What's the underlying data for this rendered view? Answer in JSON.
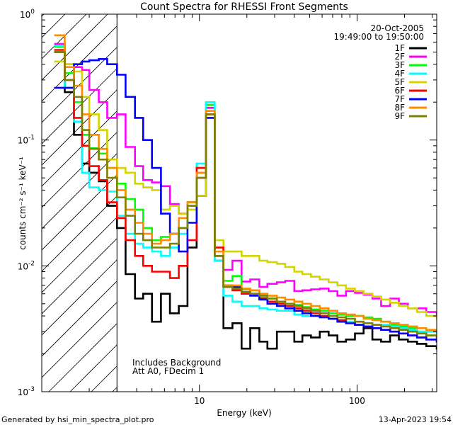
{
  "chart_data": {
    "type": "line",
    "title": "Count Spectra for RHESSI Front Segments",
    "xlabel": "Energy (keV)",
    "ylabel": "counts cm⁻² s⁻¹ keV⁻¹",
    "xscale": "log",
    "yscale": "log",
    "xlim": [
      1.0,
      320
    ],
    "ylim": [
      0.001,
      1.0
    ],
    "x_ticks": [
      {
        "value": 10,
        "label": "10"
      },
      {
        "value": 100,
        "label": "100"
      }
    ],
    "y_ticks": [
      {
        "value": 1.0,
        "base": "10",
        "exp": "0"
      },
      {
        "value": 0.1,
        "base": "10",
        "exp": "-1"
      },
      {
        "value": 0.01,
        "base": "10",
        "exp": "-2"
      },
      {
        "value": 0.001,
        "base": "10",
        "exp": "-3"
      }
    ],
    "excluded_region": {
      "from": 1.0,
      "to": 3.0,
      "style": "hatched"
    },
    "annotation_date": "20-Oct-2005",
    "annotation_time": "19:49:00 to 19:50:00",
    "annotation_notes": [
      "Includes Background",
      "Att A0, FDecim 1"
    ],
    "footer_left": "Generated by hsi_min_spectra_plot.pro",
    "footer_right": "13-Apr-2023 19:54",
    "energy_bins_keV": [
      1.2,
      1.4,
      1.6,
      1.8,
      2.0,
      2.3,
      2.6,
      3.0,
      3.4,
      3.9,
      4.4,
      5.0,
      5.7,
      6.5,
      7.4,
      8.4,
      9.6,
      11.0,
      12.5,
      14.2,
      16.2,
      18.5,
      21.0,
      24.0,
      27.0,
      31.0,
      35.0,
      40.0,
      45.0,
      51.0,
      58.0,
      66.0,
      75.0,
      85.0,
      97.0,
      110.0,
      125.0,
      142.0,
      162.0,
      184.0,
      210.0,
      240.0,
      275.0,
      320.0
    ],
    "series": [
      {
        "name": "1F",
        "color": "#000000",
        "values": [
          0.5,
          0.24,
          0.11,
          0.065,
          0.055,
          0.047,
          0.03,
          0.02,
          0.0086,
          0.0055,
          0.006,
          0.0036,
          0.006,
          0.0042,
          0.0048,
          0.014,
          0.036,
          0.16,
          0.011,
          0.0032,
          0.0035,
          0.0022,
          0.0032,
          0.0025,
          0.0022,
          0.003,
          0.003,
          0.0025,
          0.0028,
          0.0027,
          0.003,
          0.0028,
          0.0025,
          0.0026,
          0.0029,
          0.0032,
          0.0026,
          0.0025,
          0.0028,
          0.0026,
          0.0025,
          0.0024,
          0.0023,
          0.0022
        ]
      },
      {
        "name": "2F",
        "color": "#ff00ff",
        "values": [
          0.58,
          0.4,
          0.38,
          0.36,
          0.25,
          0.2,
          0.15,
          0.16,
          0.088,
          0.062,
          0.048,
          0.046,
          0.043,
          0.031,
          0.026,
          0.032,
          0.05,
          0.18,
          0.012,
          0.0093,
          0.011,
          0.0075,
          0.0078,
          0.0068,
          0.0072,
          0.0074,
          0.0076,
          0.0063,
          0.0064,
          0.0065,
          0.0066,
          0.0063,
          0.0058,
          0.0063,
          0.0061,
          0.0059,
          0.0055,
          0.0048,
          0.0055,
          0.005,
          0.0046,
          0.0046,
          0.0043,
          0.004
        ]
      },
      {
        "name": "3F",
        "color": "#00ff00",
        "values": [
          0.55,
          0.34,
          0.2,
          0.11,
          0.086,
          0.078,
          0.06,
          0.045,
          0.034,
          0.028,
          0.02,
          0.016,
          0.017,
          0.018,
          0.02,
          0.032,
          0.06,
          0.19,
          0.014,
          0.0076,
          0.0083,
          0.0065,
          0.0064,
          0.0056,
          0.0055,
          0.0052,
          0.005,
          0.0049,
          0.0047,
          0.0045,
          0.0044,
          0.0042,
          0.0041,
          0.004,
          0.004,
          0.0039,
          0.0038,
          0.0036,
          0.0034,
          0.0033,
          0.0032,
          0.003,
          0.0028,
          0.0027
        ]
      },
      {
        "name": "4F",
        "color": "#00ffff",
        "values": [
          0.56,
          0.26,
          0.14,
          0.055,
          0.042,
          0.04,
          0.039,
          0.025,
          0.018,
          0.015,
          0.014,
          0.013,
          0.012,
          0.014,
          0.018,
          0.03,
          0.065,
          0.2,
          0.011,
          0.0058,
          0.0052,
          0.0048,
          0.0048,
          0.0046,
          0.0045,
          0.0044,
          0.0044,
          0.0041,
          0.004,
          0.004,
          0.0039,
          0.0038,
          0.0037,
          0.0036,
          0.0036,
          0.0035,
          0.0034,
          0.0034,
          0.0033,
          0.0032,
          0.0031,
          0.003,
          0.003,
          0.0029
        ]
      },
      {
        "name": "5F",
        "color": "#d4d400",
        "values": [
          0.42,
          0.4,
          0.35,
          0.22,
          0.16,
          0.12,
          0.07,
          0.06,
          0.055,
          0.045,
          0.042,
          0.04,
          0.028,
          0.03,
          0.026,
          0.028,
          0.036,
          0.17,
          0.016,
          0.013,
          0.013,
          0.012,
          0.012,
          0.011,
          0.0107,
          0.0104,
          0.0098,
          0.009,
          0.0086,
          0.0082,
          0.0078,
          0.0074,
          0.007,
          0.0066,
          0.0063,
          0.006,
          0.0057,
          0.0054,
          0.0051,
          0.0048,
          0.0046,
          0.0043,
          0.004,
          0.0038
        ]
      },
      {
        "name": "6F",
        "color": "#ff0000",
        "values": [
          0.52,
          0.3,
          0.15,
          0.09,
          0.062,
          0.048,
          0.032,
          0.024,
          0.016,
          0.012,
          0.01,
          0.009,
          0.009,
          0.008,
          0.01,
          0.016,
          0.06,
          0.16,
          0.014,
          0.0068,
          0.0064,
          0.006,
          0.006,
          0.0055,
          0.0052,
          0.005,
          0.0048,
          0.0046,
          0.0044,
          0.0042,
          0.004,
          0.0038,
          0.0037,
          0.0035,
          0.0034,
          0.0033,
          0.0032,
          0.0031,
          0.003,
          0.0029,
          0.0028,
          0.0027,
          0.0026,
          0.0025
        ]
      },
      {
        "name": "7F",
        "color": "#0000ff",
        "values": [
          0.26,
          0.26,
          0.4,
          0.42,
          0.43,
          0.44,
          0.4,
          0.33,
          0.22,
          0.15,
          0.1,
          0.06,
          0.026,
          0.018,
          0.013,
          0.022,
          0.055,
          0.15,
          0.012,
          0.007,
          0.0068,
          0.0062,
          0.0058,
          0.0054,
          0.005,
          0.0048,
          0.0046,
          0.0044,
          0.0042,
          0.004,
          0.0039,
          0.0038,
          0.0036,
          0.0035,
          0.0034,
          0.0033,
          0.0032,
          0.0031,
          0.003,
          0.0029,
          0.0028,
          0.0027,
          0.0026,
          0.0025
        ]
      },
      {
        "name": "8F",
        "color": "#ff8c00",
        "values": [
          0.68,
          0.38,
          0.27,
          0.16,
          0.11,
          0.085,
          0.06,
          0.04,
          0.028,
          0.022,
          0.018,
          0.015,
          0.016,
          0.018,
          0.024,
          0.032,
          0.055,
          0.17,
          0.013,
          0.007,
          0.007,
          0.0066,
          0.0064,
          0.006,
          0.0058,
          0.0056,
          0.0054,
          0.0052,
          0.005,
          0.0048,
          0.0046,
          0.0044,
          0.0042,
          0.0041,
          0.004,
          0.0038,
          0.0037,
          0.0036,
          0.0035,
          0.0034,
          0.0033,
          0.0032,
          0.0031,
          0.003
        ]
      },
      {
        "name": "9F",
        "color": "#808000",
        "values": [
          0.5,
          0.3,
          0.22,
          0.12,
          0.085,
          0.07,
          0.05,
          0.035,
          0.025,
          0.018,
          0.016,
          0.014,
          0.014,
          0.015,
          0.02,
          0.03,
          0.05,
          0.16,
          0.012,
          0.0068,
          0.0066,
          0.0062,
          0.006,
          0.0058,
          0.0055,
          0.0052,
          0.005,
          0.0048,
          0.0046,
          0.0044,
          0.0042,
          0.004,
          0.0039,
          0.0038,
          0.0036,
          0.0035,
          0.0034,
          0.0033,
          0.0032,
          0.0031,
          0.003,
          0.0029,
          0.0028,
          0.0027
        ]
      }
    ]
  }
}
